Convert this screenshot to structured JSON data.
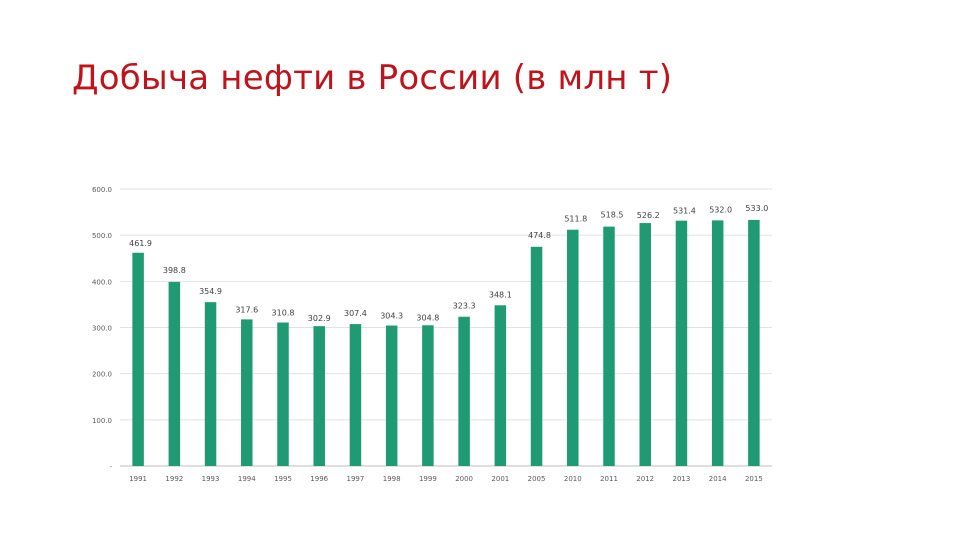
{
  "slide": {
    "title": "Добыча нефти в России (в млн т)"
  },
  "chart_data": {
    "type": "bar",
    "title": "Добыча нефти в России (в млн т)",
    "xlabel": "",
    "ylabel": "",
    "categories": [
      "1991",
      "1992",
      "1993",
      "1994",
      "1995",
      "1996",
      "1997",
      "1998",
      "1999",
      "2000",
      "2001",
      "2005",
      "2010",
      "2011",
      "2012",
      "2013",
      "2014",
      "2015"
    ],
    "values": [
      461.9,
      398.8,
      354.9,
      317.6,
      310.8,
      302.9,
      307.4,
      304.3,
      304.8,
      323.3,
      348.1,
      474.8,
      511.8,
      518.5,
      526.2,
      531.4,
      532.0,
      533.0
    ],
    "data_labels": [
      "461.9",
      "398.8",
      "354.9",
      "317.6",
      "310.8",
      "302.9",
      "307.4",
      "304.3",
      "304.8",
      "323.3",
      "348.1",
      "474.8",
      "511.8",
      "518.5",
      "526.2",
      "531.4",
      "532.0",
      "533.0"
    ],
    "y_ticks": [
      {
        "value": 0,
        "label": "-"
      },
      {
        "value": 100,
        "label": "100.0"
      },
      {
        "value": 200,
        "label": "200.0"
      },
      {
        "value": 300,
        "label": "300.0"
      },
      {
        "value": 400,
        "label": "400.0"
      },
      {
        "value": 500,
        "label": "500.0"
      },
      {
        "value": 600,
        "label": "600.0"
      }
    ],
    "ylim": [
      0,
      600
    ],
    "grid": true,
    "legend": "none",
    "colors": {
      "bar": "#1f9a72",
      "grid": "#e2e2e2",
      "axis": "#bfbfbf",
      "tick_text": "#595959",
      "label_text": "#404040",
      "title": "#c0141c"
    }
  }
}
